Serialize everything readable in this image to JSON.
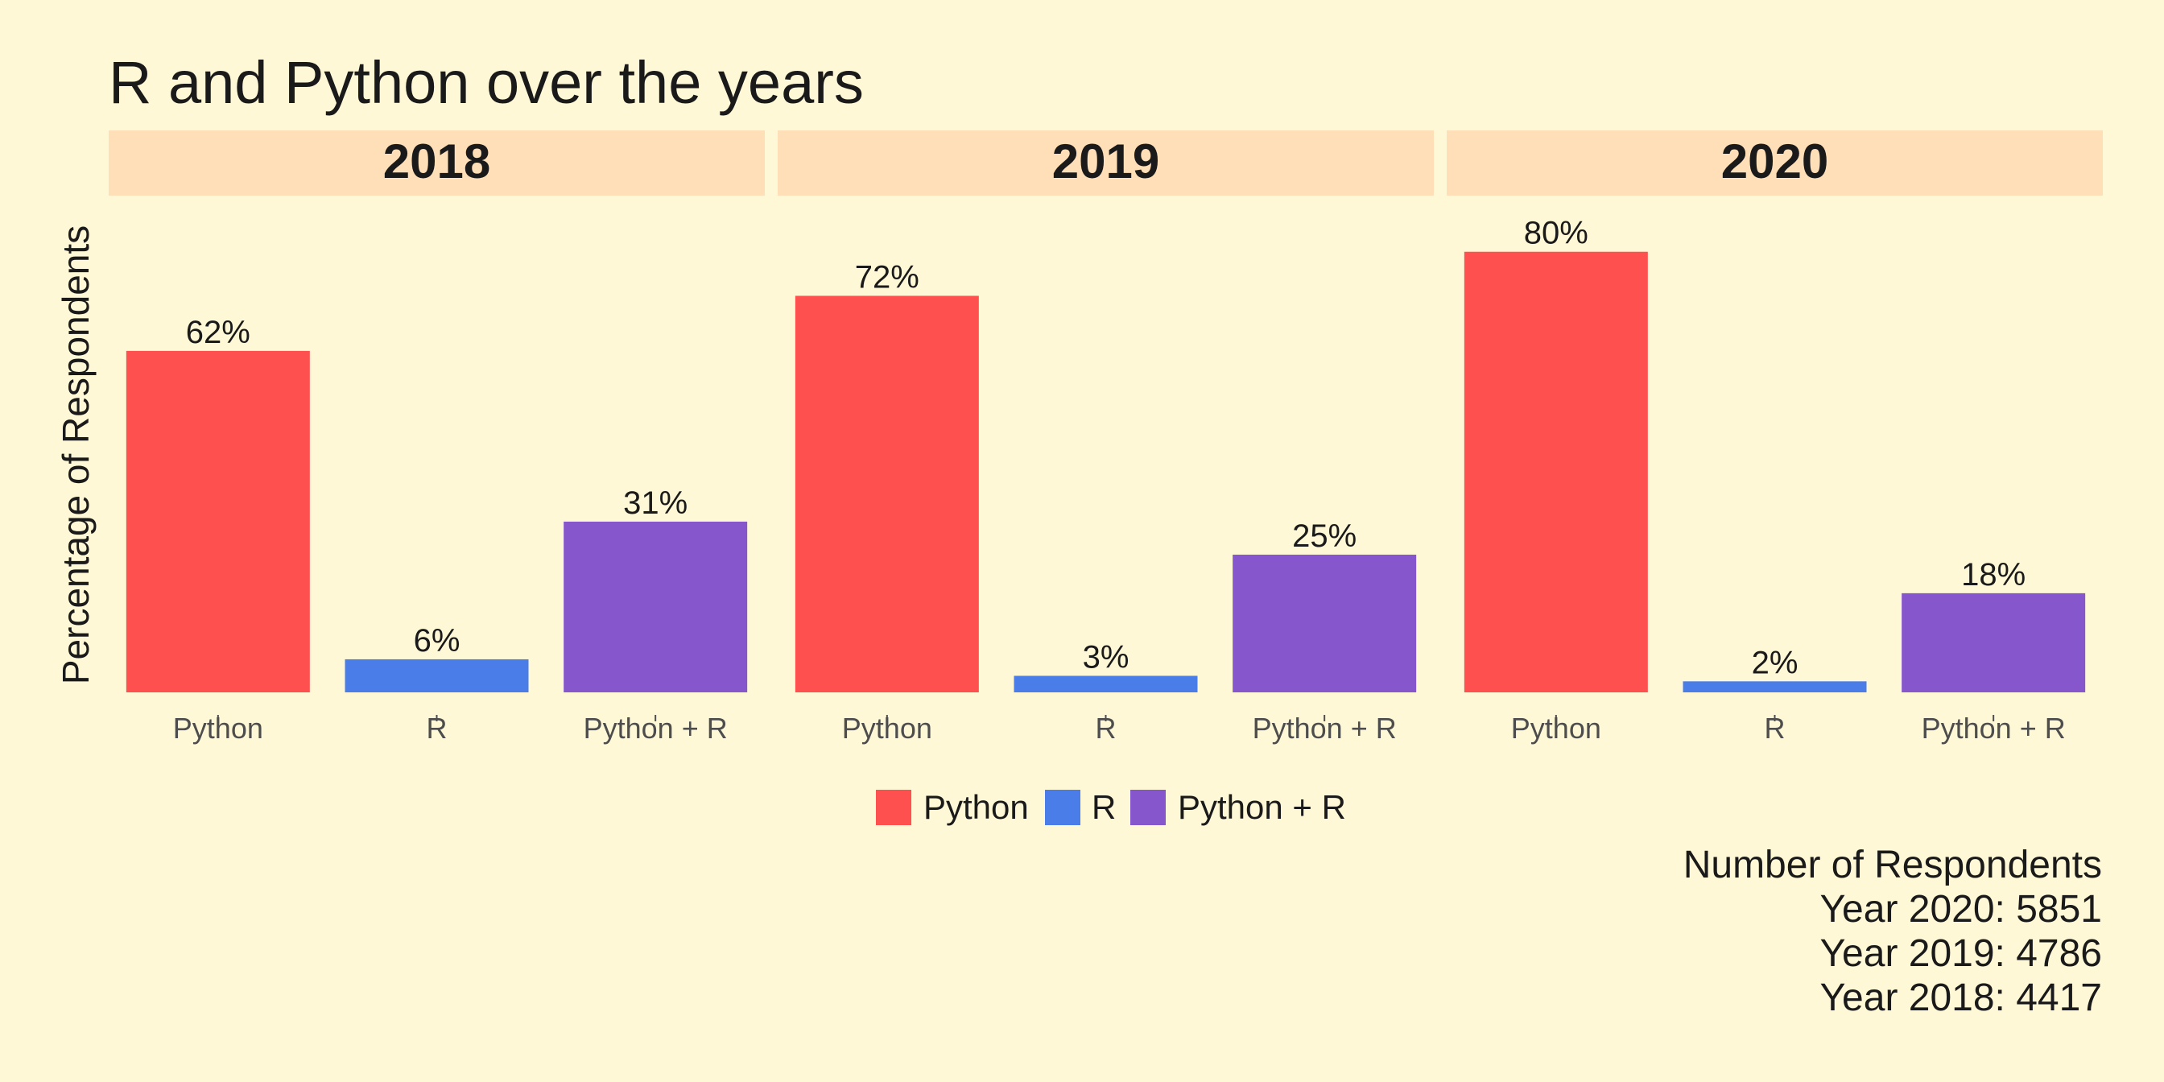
{
  "chart_data": {
    "type": "bar",
    "title": "R and Python over the years",
    "ylabel": "Percentage of Respondents",
    "xlabel": "",
    "ylim": [
      0,
      88
    ],
    "grid": false,
    "categories": [
      "Python",
      "R",
      "Python + R"
    ],
    "facets": [
      {
        "label": "2018",
        "values": [
          62,
          6,
          31
        ],
        "value_labels": [
          "62%",
          "6%",
          "31%"
        ]
      },
      {
        "label": "2019",
        "values": [
          72,
          3,
          25
        ],
        "value_labels": [
          "72%",
          "3%",
          "25%"
        ]
      },
      {
        "label": "2020",
        "values": [
          80,
          2,
          18
        ],
        "value_labels": [
          "80%",
          "2%",
          "18%"
        ]
      }
    ],
    "series_colors": {
      "Python": "#ff5050",
      "R": "#4a7de8",
      "Python + R": "#8656cc"
    },
    "legend": {
      "placement": "bottom",
      "entries": [
        "Python",
        "R",
        "Python + R"
      ]
    },
    "caption": [
      "Number of Respondents",
      "Year 2020: 5851",
      "Year 2019: 4786",
      "Year 2018: 4417"
    ],
    "colors": {
      "background": "#fff8d6",
      "strip": "#ffdfb8",
      "text": "#1a1a1a",
      "tick_text": "#4d4d4d"
    }
  }
}
